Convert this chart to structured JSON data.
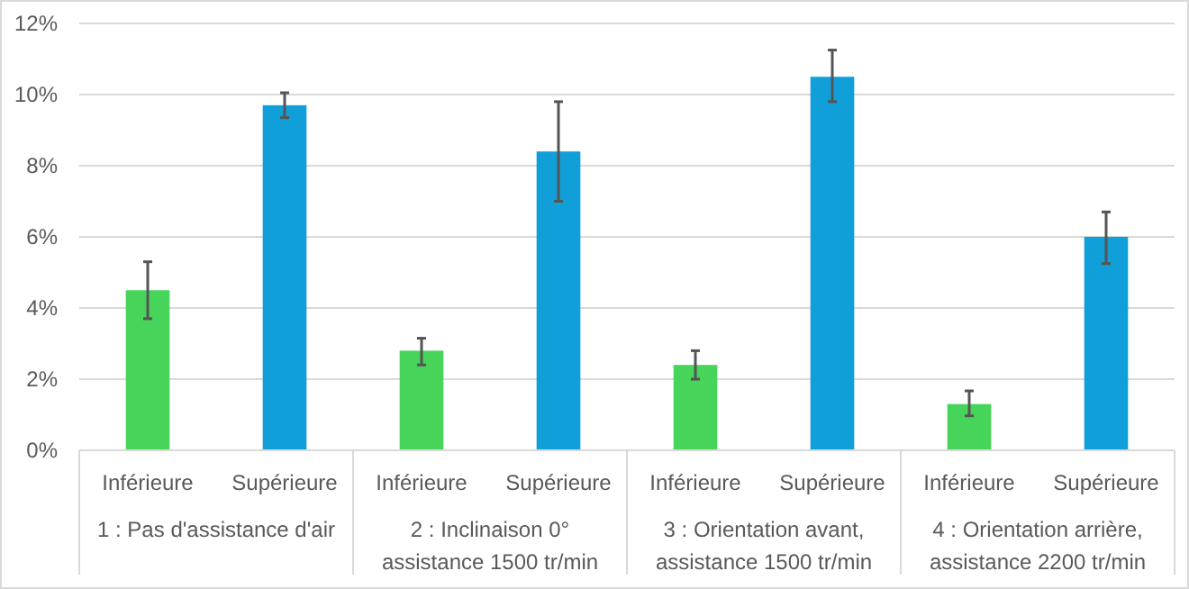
{
  "chart_data": {
    "type": "bar",
    "categories": [
      "Inférieure",
      "Supérieure",
      "Inférieure",
      "Supérieure",
      "Inférieure",
      "Supérieure",
      "Inférieure",
      "Supérieure"
    ],
    "values": [
      4.5,
      9.7,
      2.8,
      8.4,
      2.4,
      10.5,
      1.3,
      6.0
    ],
    "colors": [
      "#47d45a",
      "#109fd8",
      "#47d45a",
      "#109fd8",
      "#47d45a",
      "#109fd8",
      "#47d45a",
      "#109fd8"
    ],
    "errors": [
      [
        3.7,
        5.3
      ],
      [
        9.35,
        10.05
      ],
      [
        2.4,
        3.15
      ],
      [
        7.0,
        9.8
      ],
      [
        2.0,
        2.8
      ],
      [
        9.8,
        11.25
      ],
      [
        0.97,
        1.67
      ],
      [
        5.25,
        6.7
      ]
    ],
    "ylim": [
      0,
      12
    ],
    "yticks": [
      {
        "value": 0,
        "label": "0%"
      },
      {
        "value": 2,
        "label": "2%"
      },
      {
        "value": 4,
        "label": "4%"
      },
      {
        "value": 6,
        "label": "6%"
      },
      {
        "value": 8,
        "label": "8%"
      },
      {
        "value": 10,
        "label": "10%"
      },
      {
        "value": 12,
        "label": "12%"
      }
    ],
    "grid": "y",
    "annotations": [
      "1 : Pas d'assistance d'air",
      "2 : Inclinaison 0°\nassistance 1500 tr/min",
      "3 : Orientation avant,\nassistance 1500 tr/min",
      "4 : Orientation arrière,\nassistance 2200 tr/min"
    ]
  }
}
